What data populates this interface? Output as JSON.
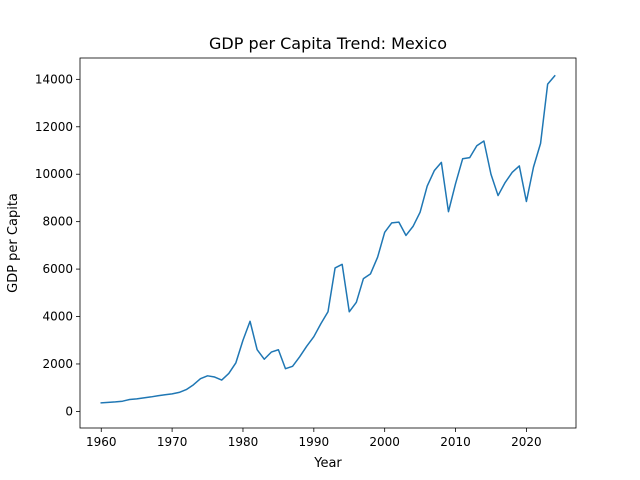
{
  "chart_data": {
    "type": "line",
    "title": "GDP per Capita Trend: Mexico",
    "xlabel": "Year",
    "ylabel": "GDP per Capita",
    "xlim": [
      1957,
      2027
    ],
    "ylim": [
      -700,
      14900
    ],
    "x_ticks": [
      1960,
      1970,
      1980,
      1990,
      2000,
      2010,
      2020
    ],
    "y_ticks": [
      0,
      2000,
      4000,
      6000,
      8000,
      10000,
      12000,
      14000
    ],
    "grid": false,
    "legend": "none",
    "series": [
      {
        "color": "#1f77b4",
        "x": [
          1960,
          1961,
          1962,
          1963,
          1964,
          1965,
          1966,
          1967,
          1968,
          1969,
          1970,
          1971,
          1972,
          1973,
          1974,
          1975,
          1976,
          1977,
          1978,
          1979,
          1980,
          1981,
          1982,
          1983,
          1984,
          1985,
          1986,
          1987,
          1988,
          1989,
          1990,
          1991,
          1992,
          1993,
          1994,
          1995,
          1996,
          1997,
          1998,
          1999,
          2000,
          2001,
          2002,
          2003,
          2004,
          2005,
          2006,
          2007,
          2008,
          2009,
          2010,
          2011,
          2012,
          2013,
          2014,
          2015,
          2016,
          2017,
          2018,
          2019,
          2020,
          2021,
          2022,
          2023,
          2024
        ],
        "y": [
          360,
          380,
          400,
          430,
          500,
          530,
          570,
          610,
          660,
          700,
          740,
          800,
          920,
          1120,
          1380,
          1500,
          1450,
          1320,
          1600,
          2050,
          3000,
          3800,
          2600,
          2200,
          2500,
          2600,
          1800,
          1900,
          2300,
          2750,
          3150,
          3700,
          4200,
          6050,
          6200,
          4200,
          4600,
          5600,
          5800,
          6500,
          7550,
          7950,
          7980,
          7420,
          7800,
          8400,
          9500,
          10150,
          10500,
          8420,
          9600,
          10650,
          10700,
          11200,
          11400,
          10000,
          9100,
          9650,
          10080,
          10350,
          8850,
          10300,
          11300,
          13800,
          14150
        ]
      }
    ]
  }
}
